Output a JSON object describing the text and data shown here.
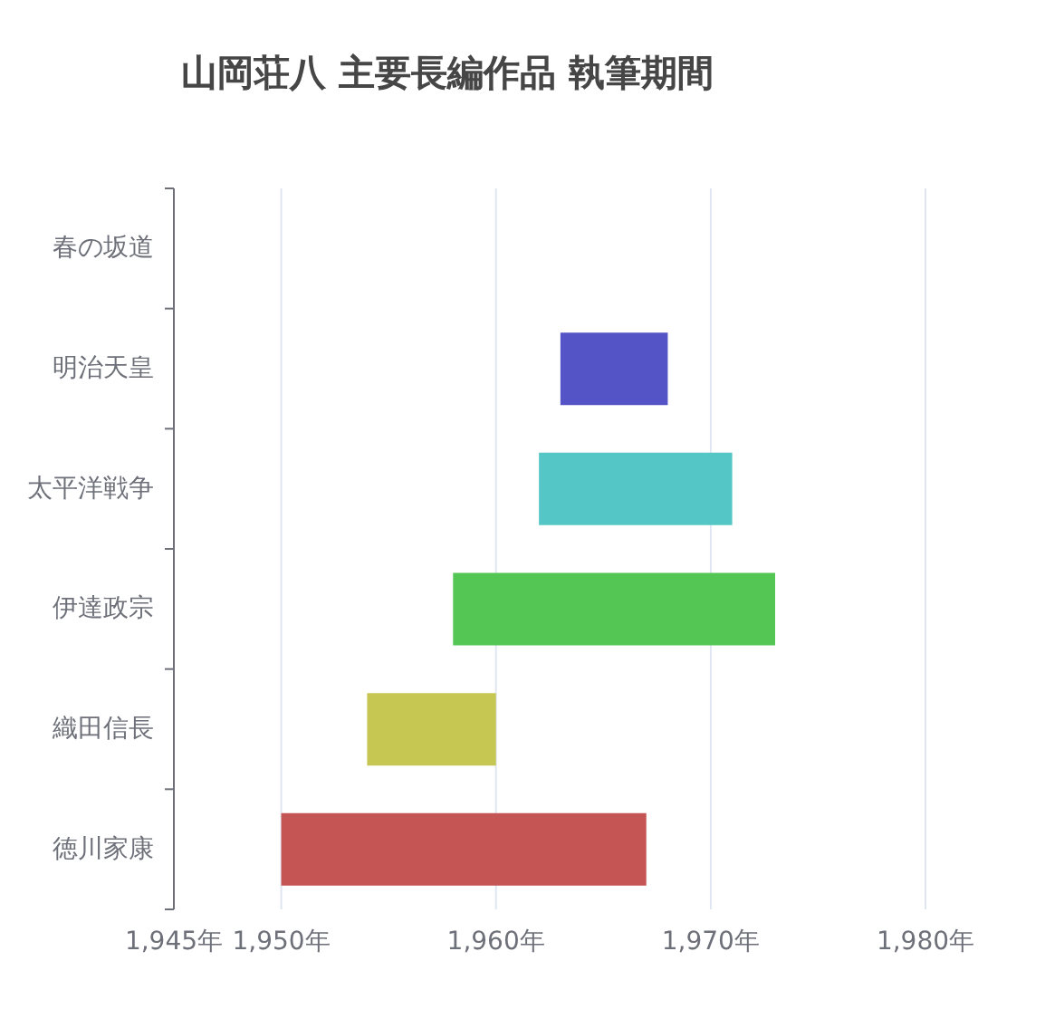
{
  "chart_data": {
    "type": "bar",
    "orientation": "horizontal",
    "title": "山岡荘八 主要長編作品 執筆期間",
    "categories": [
      "春の坂道",
      "明治天皇",
      "太平洋戦争",
      "伊達政宗",
      "織田信長",
      "徳川家康"
    ],
    "base": [
      null,
      1963,
      1962,
      1958,
      1954,
      1950
    ],
    "values": [
      null,
      5,
      9,
      15,
      6,
      17
    ],
    "colors": [
      null,
      "#5454c6",
      "#54c6c6",
      "#54c654",
      "#c6c652",
      "#c55454"
    ],
    "xlim": [
      1945,
      1980
    ],
    "xticks": [
      {
        "value": 1945,
        "label": "1,945年"
      },
      {
        "value": 1950,
        "label": "1,950年"
      },
      {
        "value": 1960,
        "label": "1,960年"
      },
      {
        "value": 1970,
        "label": "1,970年"
      },
      {
        "value": 1980,
        "label": "1,980年"
      }
    ],
    "grid": "x"
  }
}
